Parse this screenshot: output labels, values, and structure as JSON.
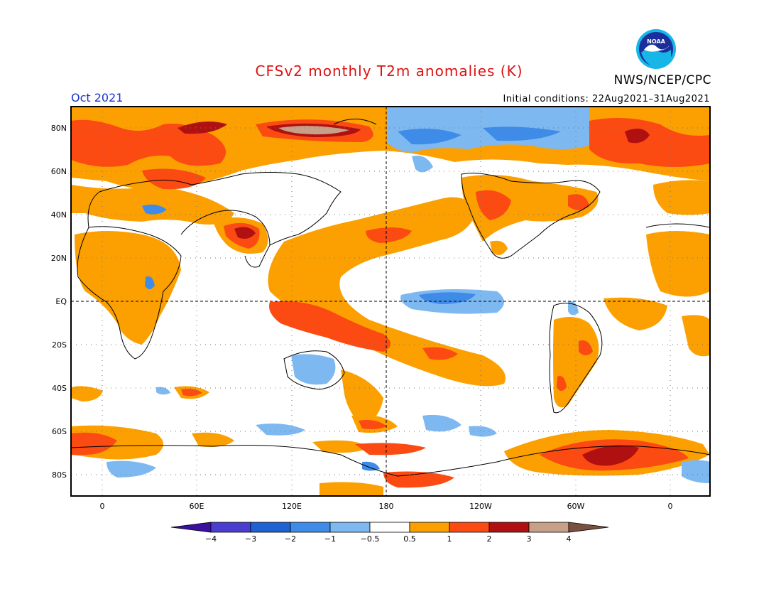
{
  "header": {
    "title": "CFSv2 monthly T2m anomalies (K)",
    "month": "Oct 2021",
    "initial_conditions": "Initial conditions: 22Aug2021–31Aug2021",
    "agency": "NWS/NCEP/CPC",
    "logo_text": "NOAA"
  },
  "axes": {
    "lat_labels": [
      "80N",
      "60N",
      "40N",
      "20N",
      "EQ",
      "20S",
      "40S",
      "60S",
      "80S"
    ],
    "lon_labels": [
      "0",
      "60E",
      "120E",
      "180",
      "120W",
      "60W",
      "0"
    ]
  },
  "colorbar": {
    "tick_labels": [
      "−4",
      "−3",
      "−2",
      "−1",
      "−0.5",
      "0.5",
      "1",
      "2",
      "3",
      "4"
    ],
    "colors": [
      "#3a10a0",
      "#4a3ed0",
      "#1f62d4",
      "#3e8ce8",
      "#7eb8f0",
      "#ffffff",
      "#fba000",
      "#fb4a12",
      "#b01010",
      "#c8a088",
      "#7a5040"
    ]
  },
  "map_colors": {
    "orange": "#fba000",
    "red": "#fb4a12",
    "dark_red": "#b01010",
    "tan": "#c8a088",
    "light_blue": "#7eb8f0",
    "mid_blue": "#3e8ce8",
    "blue": "#1f62d4"
  }
}
